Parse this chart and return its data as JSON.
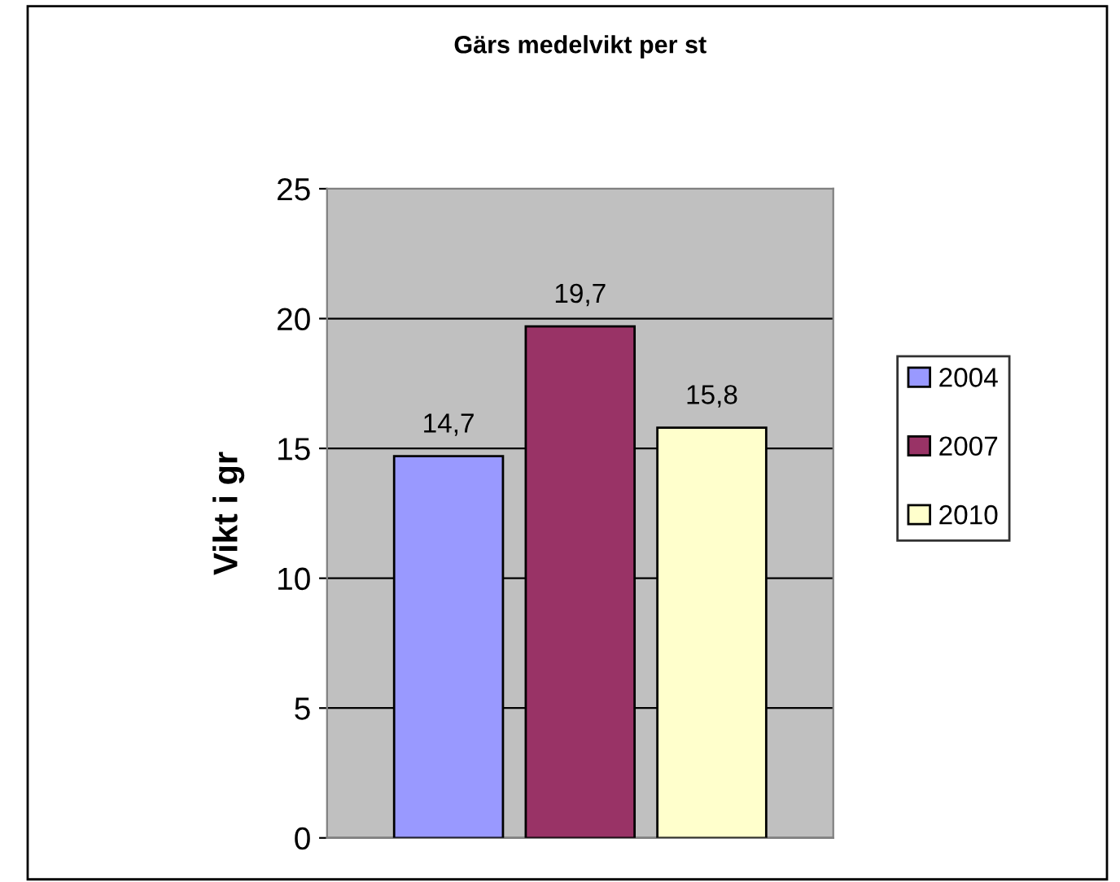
{
  "chart_data": {
    "type": "bar",
    "title": "Gärs medelvikt per st",
    "ylabel": "Vikt i gr",
    "categories": [
      null
    ],
    "series": [
      {
        "name": "2004",
        "color": "#9999ff",
        "values": [
          14.7
        ],
        "value_labels": [
          "14,7"
        ]
      },
      {
        "name": "2007",
        "color": "#993366",
        "values": [
          19.7
        ],
        "value_labels": [
          "19,7"
        ]
      },
      {
        "name": "2010",
        "color": "#ffffcc",
        "values": [
          15.8
        ],
        "value_labels": [
          "15,8"
        ]
      }
    ],
    "ylim": [
      0,
      25
    ],
    "yticks": [
      0,
      5,
      10,
      15,
      20,
      25
    ],
    "grid": "y",
    "legend": "right"
  }
}
